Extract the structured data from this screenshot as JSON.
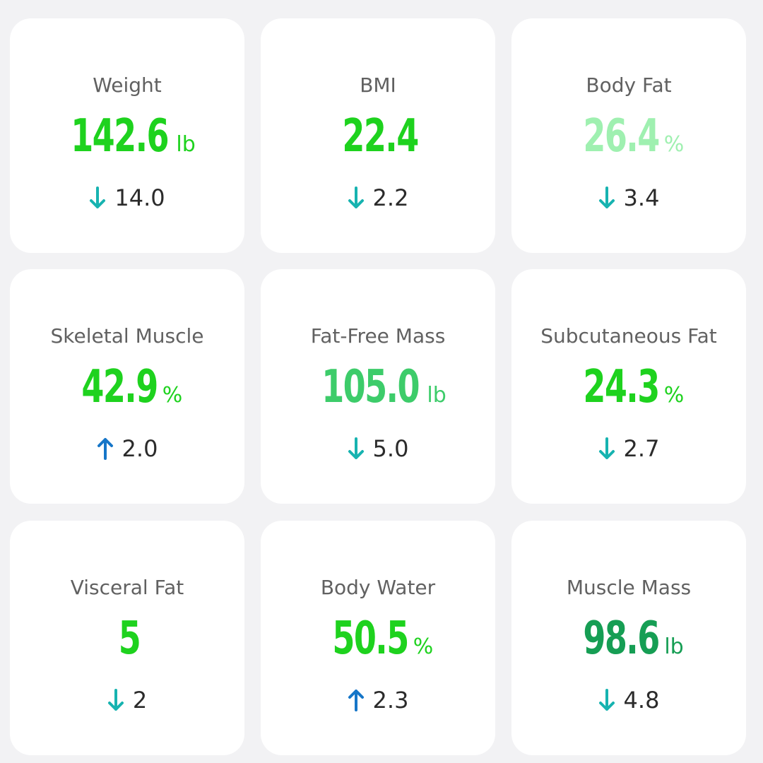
{
  "metrics": [
    {
      "label": "Weight",
      "value": "142.6",
      "unit": "lb",
      "delta": "14.0",
      "direction": "down",
      "color": "#1ed21e"
    },
    {
      "label": "BMI",
      "value": "22.4",
      "unit": "",
      "delta": "2.2",
      "direction": "down",
      "color": "#1ed21e"
    },
    {
      "label": "Body Fat",
      "value": "26.4",
      "unit": "%",
      "delta": "3.4",
      "direction": "down",
      "color": "#9ff0b0"
    },
    {
      "label": "Skeletal Muscle",
      "value": "42.9",
      "unit": "%",
      "delta": "2.0",
      "direction": "up",
      "color": "#1ed21e"
    },
    {
      "label": "Fat-Free Mass",
      "value": "105.0",
      "unit": "lb",
      "delta": "5.0",
      "direction": "down",
      "color": "#3dcc6a"
    },
    {
      "label": "Subcutaneous Fat",
      "value": "24.3",
      "unit": "%",
      "delta": "2.7",
      "direction": "down",
      "color": "#1ed21e"
    },
    {
      "label": "Visceral Fat",
      "value": "5",
      "unit": "",
      "delta": "2",
      "direction": "down",
      "color": "#1ed21e"
    },
    {
      "label": "Body Water",
      "value": "50.5",
      "unit": "%",
      "delta": "2.3",
      "direction": "up",
      "color": "#1ed21e"
    },
    {
      "label": "Muscle Mass",
      "value": "98.6",
      "unit": "lb",
      "delta": "4.8",
      "direction": "down",
      "color": "#169e54"
    }
  ],
  "arrow_colors": {
    "down": "#17b3b0",
    "up": "#1676c8"
  }
}
